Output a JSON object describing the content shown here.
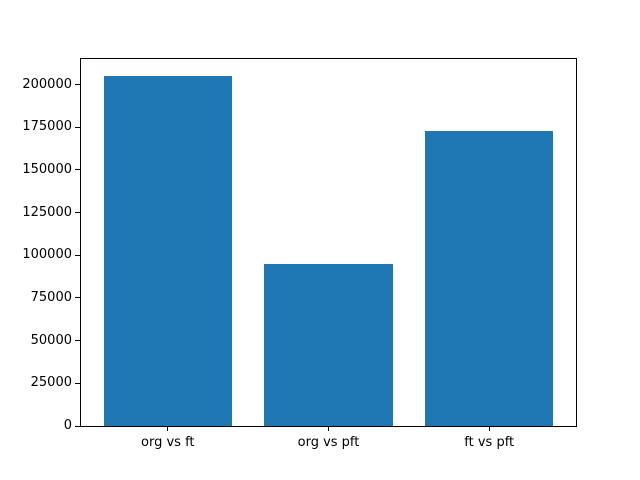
{
  "chart_data": {
    "type": "bar",
    "title": "",
    "xlabel": "",
    "ylabel": "",
    "categories": [
      "org vs ft",
      "org vs pft",
      "ft vs pft"
    ],
    "values": [
      205000,
      95000,
      173000
    ],
    "yticks": [
      0,
      25000,
      50000,
      75000,
      100000,
      125000,
      150000,
      175000,
      200000
    ],
    "ylim": [
      0,
      215000
    ],
    "grid": false,
    "legend": "none",
    "bar_color": "#1f77b4",
    "spine_color": "#000000",
    "background_color": "#ffffff",
    "bar_width_fraction": 0.8,
    "x_margin_fraction": 0.05
  }
}
